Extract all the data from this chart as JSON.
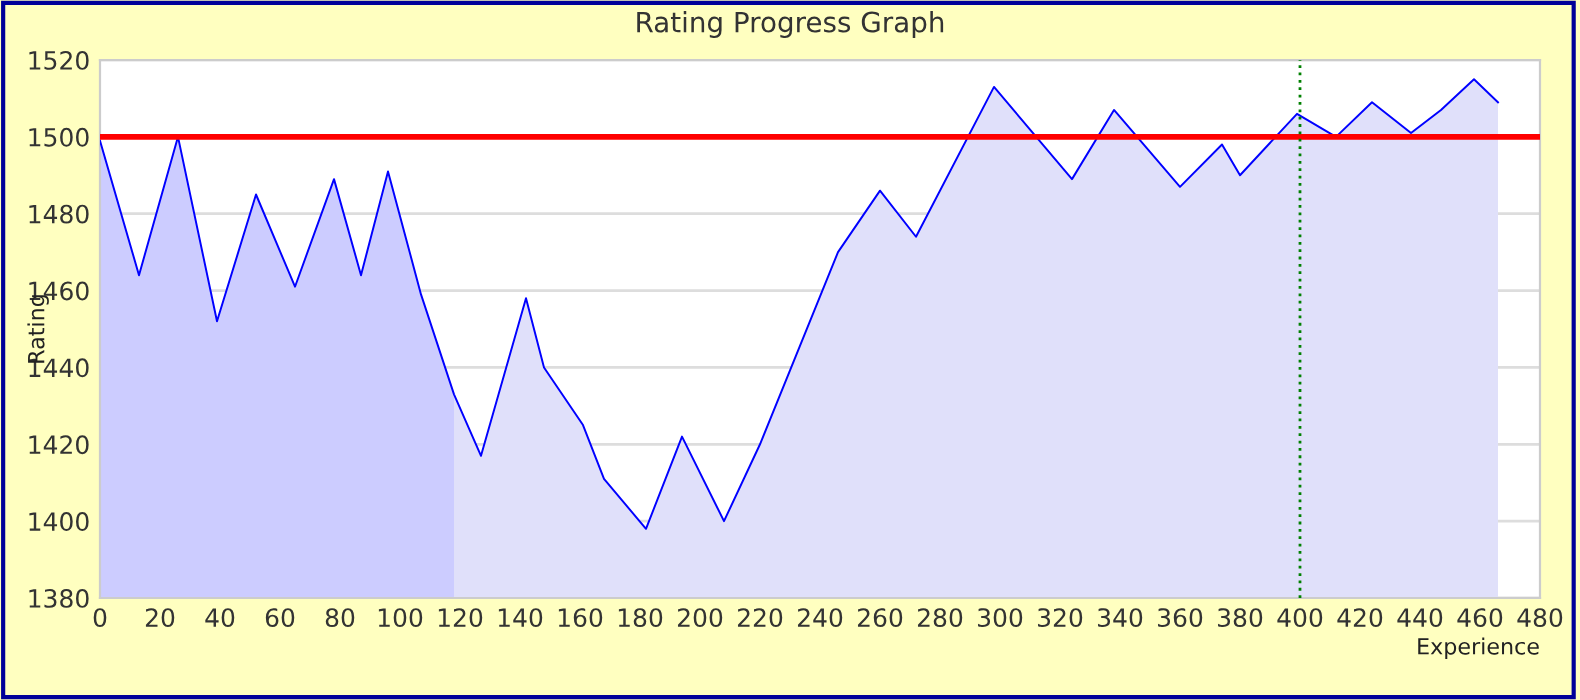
{
  "chart_data": {
    "type": "area",
    "title": "Rating Progress Graph",
    "xlabel": "Experience",
    "ylabel": "Rating",
    "series": [
      {
        "color": "#ccccff",
        "x": [
          0,
          13,
          26,
          39,
          52,
          65,
          78,
          87,
          96,
          107,
          118
        ],
        "values": [
          1499,
          1464,
          1500,
          1452,
          1485,
          1461,
          1489,
          1464,
          1491,
          1459,
          1433
        ]
      },
      {
        "color": "#e0e0fa",
        "x": [
          118,
          127,
          142,
          148,
          161,
          168,
          182,
          194,
          208,
          220,
          246,
          260,
          272,
          298,
          324,
          338,
          360,
          374,
          380,
          399,
          412,
          424,
          437,
          447,
          458,
          466
        ],
        "values": [
          1433,
          1417,
          1458,
          1440,
          1425,
          1411,
          1398,
          1422,
          1400,
          1420,
          1470,
          1486,
          1474,
          1513,
          1489,
          1507,
          1487,
          1498,
          1490,
          1506,
          1500,
          1509,
          1501,
          1507,
          1515,
          1509
        ]
      },
      {
        "type": "line",
        "color": "#0000ff",
        "x": [
          0,
          13,
          26,
          39,
          52,
          65,
          78,
          87,
          96,
          107,
          118,
          127,
          142,
          148,
          161,
          168,
          182,
          194,
          208,
          220,
          246,
          260,
          272,
          298,
          324,
          338,
          360,
          374,
          380,
          399,
          412,
          424,
          437,
          447,
          458,
          466
        ],
        "values": [
          1499,
          1464,
          1500,
          1452,
          1485,
          1461,
          1489,
          1464,
          1491,
          1459,
          1433,
          1417,
          1458,
          1440,
          1425,
          1411,
          1398,
          1422,
          1400,
          1420,
          1470,
          1486,
          1474,
          1513,
          1489,
          1507,
          1487,
          1498,
          1490,
          1506,
          1500,
          1509,
          1501,
          1507,
          1515,
          1509
        ]
      }
    ],
    "ref_lines": [
      {
        "axis": "y",
        "value": 1500,
        "color": "#ff0000",
        "line_style": "solid"
      },
      {
        "axis": "x",
        "value": 400,
        "color": "#008000",
        "line_style": "dotted"
      }
    ],
    "xlim": [
      0,
      480
    ],
    "xticks": [
      0,
      20,
      40,
      60,
      80,
      100,
      120,
      140,
      160,
      180,
      200,
      220,
      240,
      260,
      280,
      300,
      320,
      340,
      360,
      380,
      400,
      420,
      440,
      460,
      480
    ],
    "ylim": [
      1380,
      1520
    ],
    "yticks": [
      1380,
      1400,
      1420,
      1440,
      1460,
      1480,
      1500,
      1520
    ],
    "grid": "y",
    "legend": false
  }
}
